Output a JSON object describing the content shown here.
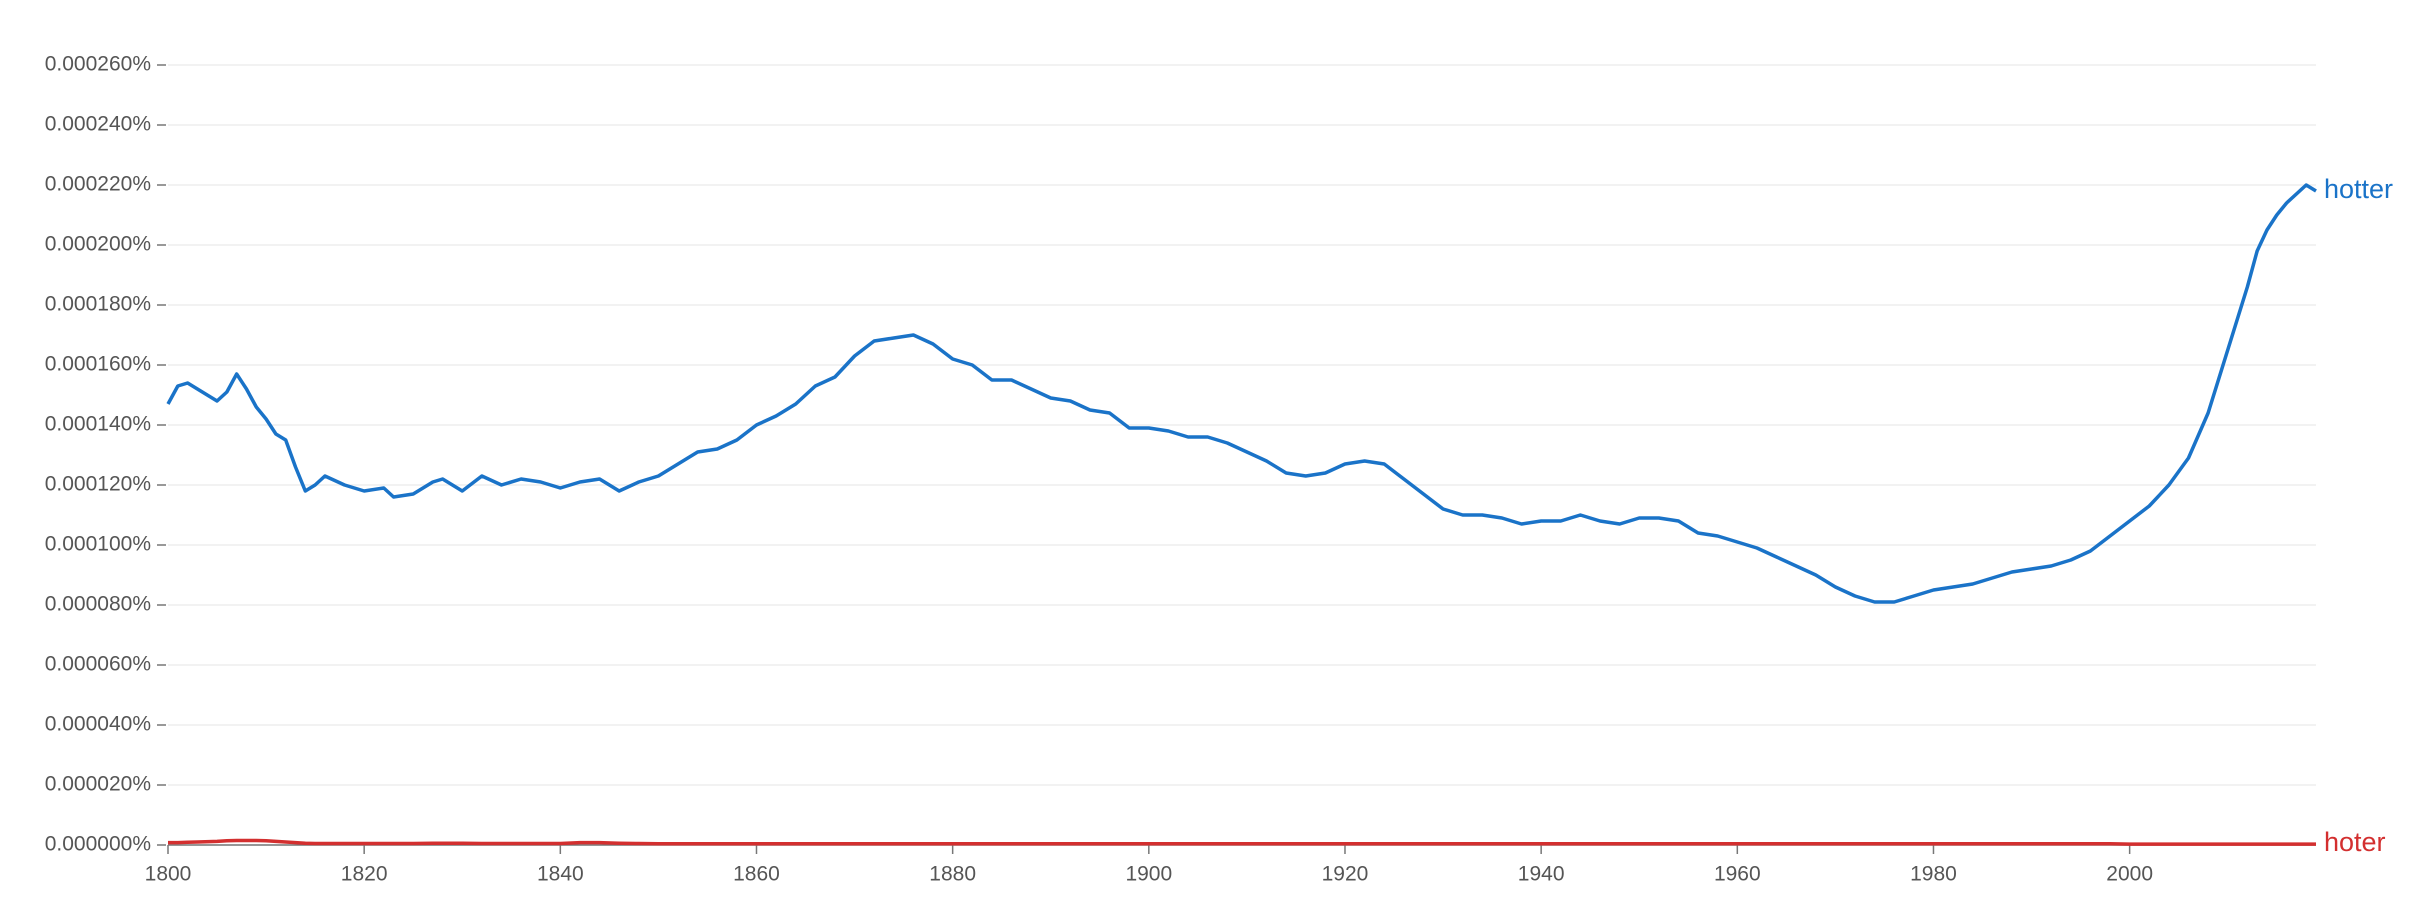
{
  "chart_data": {
    "type": "line",
    "x": [
      1800,
      1801,
      1802,
      1803,
      1805,
      1806,
      1807,
      1808,
      1809,
      1810,
      1811,
      1812,
      1813,
      1814,
      1815,
      1816,
      1818,
      1820,
      1822,
      1823,
      1825,
      1827,
      1828,
      1830,
      1832,
      1834,
      1836,
      1838,
      1840,
      1842,
      1844,
      1846,
      1848,
      1850,
      1852,
      1854,
      1856,
      1858,
      1860,
      1862,
      1864,
      1866,
      1868,
      1870,
      1872,
      1874,
      1876,
      1878,
      1880,
      1882,
      1884,
      1886,
      1888,
      1890,
      1892,
      1894,
      1896,
      1898,
      1900,
      1902,
      1904,
      1906,
      1908,
      1910,
      1912,
      1914,
      1916,
      1918,
      1920,
      1922,
      1924,
      1926,
      1928,
      1930,
      1932,
      1934,
      1936,
      1938,
      1940,
      1942,
      1944,
      1946,
      1948,
      1950,
      1952,
      1954,
      1956,
      1958,
      1960,
      1962,
      1964,
      1966,
      1968,
      1970,
      1972,
      1974,
      1976,
      1978,
      1980,
      1982,
      1984,
      1986,
      1988,
      1990,
      1992,
      1994,
      1996,
      1998,
      2000,
      2002,
      2004,
      2006,
      2008,
      2010,
      2012,
      2013,
      2014,
      2015,
      2016,
      2017,
      2018,
      2019
    ],
    "series": [
      {
        "name": "hotter",
        "color": "#1a73c8",
        "values": [
          0.000147,
          0.000153,
          0.000154,
          0.000152,
          0.000148,
          0.000151,
          0.000157,
          0.000152,
          0.000146,
          0.000142,
          0.000137,
          0.000135,
          0.000126,
          0.000118,
          0.00012,
          0.000123,
          0.00012,
          0.000118,
          0.000119,
          0.000116,
          0.000117,
          0.000121,
          0.000122,
          0.000118,
          0.000123,
          0.00012,
          0.000122,
          0.000121,
          0.000119,
          0.000121,
          0.000122,
          0.000118,
          0.000121,
          0.000123,
          0.000127,
          0.000131,
          0.000132,
          0.000135,
          0.00014,
          0.000143,
          0.000147,
          0.000153,
          0.000156,
          0.000163,
          0.000168,
          0.000169,
          0.00017,
          0.000167,
          0.000162,
          0.00016,
          0.000155,
          0.000155,
          0.000152,
          0.000149,
          0.000148,
          0.000145,
          0.000144,
          0.000139,
          0.000139,
          0.000138,
          0.000136,
          0.000136,
          0.000134,
          0.000131,
          0.000128,
          0.000124,
          0.000123,
          0.000124,
          0.000127,
          0.000128,
          0.000127,
          0.000122,
          0.000117,
          0.000112,
          0.00011,
          0.00011,
          0.000109,
          0.000107,
          0.000108,
          0.000108,
          0.00011,
          0.000108,
          0.000107,
          0.000109,
          0.000109,
          0.000108,
          0.000104,
          0.000103,
          0.000101,
          9.9e-05,
          9.6e-05,
          9.3e-05,
          9e-05,
          8.6e-05,
          8.3e-05,
          8.1e-05,
          8.1e-05,
          8.3e-05,
          8.5e-05,
          8.6e-05,
          8.7e-05,
          8.9e-05,
          9.1e-05,
          9.2e-05,
          9.3e-05,
          9.5e-05,
          9.8e-05,
          0.000103,
          0.000108,
          0.000113,
          0.00012,
          0.000129,
          0.000144,
          0.000165,
          0.000186,
          0.000198,
          0.000205,
          0.00021,
          0.000214,
          0.000217,
          0.00022,
          0.000218
        ]
      },
      {
        "name": "hoter",
        "color": "#d32f2f",
        "values": [
          8e-07,
          8e-07,
          9e-07,
          1e-06,
          1.2e-06,
          1.4e-06,
          1.5e-06,
          1.5e-06,
          1.5e-06,
          1.4e-06,
          1.2e-06,
          1e-06,
          8e-07,
          6e-07,
          5e-07,
          5e-07,
          5e-07,
          5e-07,
          5e-07,
          5e-07,
          5e-07,
          6e-07,
          6e-07,
          6e-07,
          5e-07,
          5e-07,
          5e-07,
          5e-07,
          5e-07,
          8e-07,
          8e-07,
          6e-07,
          5e-07,
          4e-07,
          4e-07,
          4e-07,
          4e-07,
          4e-07,
          4e-07,
          4e-07,
          4e-07,
          4e-07,
          4e-07,
          4e-07,
          4e-07,
          4e-07,
          4e-07,
          4e-07,
          4e-07,
          4e-07,
          4e-07,
          4e-07,
          4e-07,
          4e-07,
          4e-07,
          4e-07,
          4e-07,
          4e-07,
          4e-07,
          4e-07,
          4e-07,
          4e-07,
          4e-07,
          4e-07,
          4e-07,
          4e-07,
          4e-07,
          4e-07,
          4e-07,
          4e-07,
          4e-07,
          4e-07,
          4e-07,
          4e-07,
          4e-07,
          4e-07,
          4e-07,
          4e-07,
          4e-07,
          4e-07,
          4e-07,
          4e-07,
          4e-07,
          4e-07,
          4e-07,
          4e-07,
          4e-07,
          4e-07,
          4e-07,
          4e-07,
          4e-07,
          4e-07,
          4e-07,
          4e-07,
          4e-07,
          4e-07,
          4e-07,
          4e-07,
          4e-07,
          4e-07,
          4e-07,
          4e-07,
          4e-07,
          4e-07,
          4e-07,
          4e-07,
          4e-07,
          4e-07,
          3e-07,
          3e-07,
          3e-07,
          3e-07,
          3e-07,
          3e-07,
          3e-07,
          3e-07,
          3e-07,
          3e-07,
          3e-07,
          3e-07,
          3e-07,
          3e-07
        ]
      }
    ],
    "xlim": [
      1800,
      2019
    ],
    "xticks": [
      1800,
      1820,
      1840,
      1860,
      1880,
      1900,
      1920,
      1940,
      1960,
      1980,
      2000
    ],
    "ylim": [
      0,
      0.00026
    ],
    "yticks": [
      {
        "value": 0,
        "label": "0.000000%"
      },
      {
        "value": 2e-05,
        "label": "0.000020%"
      },
      {
        "value": 4e-05,
        "label": "0.000040%"
      },
      {
        "value": 6e-05,
        "label": "0.000060%"
      },
      {
        "value": 8e-05,
        "label": "0.000080%"
      },
      {
        "value": 0.0001,
        "label": "0.000100%"
      },
      {
        "value": 0.00012,
        "label": "0.000120%"
      },
      {
        "value": 0.00014,
        "label": "0.000140%"
      },
      {
        "value": 0.00016,
        "label": "0.000160%"
      },
      {
        "value": 0.00018,
        "label": "0.000180%"
      },
      {
        "value": 0.0002,
        "label": "0.000200%"
      },
      {
        "value": 0.00022,
        "label": "0.000220%"
      },
      {
        "value": 0.00024,
        "label": "0.000240%"
      },
      {
        "value": 0.00026,
        "label": "0.000260%"
      }
    ],
    "grid": true
  }
}
